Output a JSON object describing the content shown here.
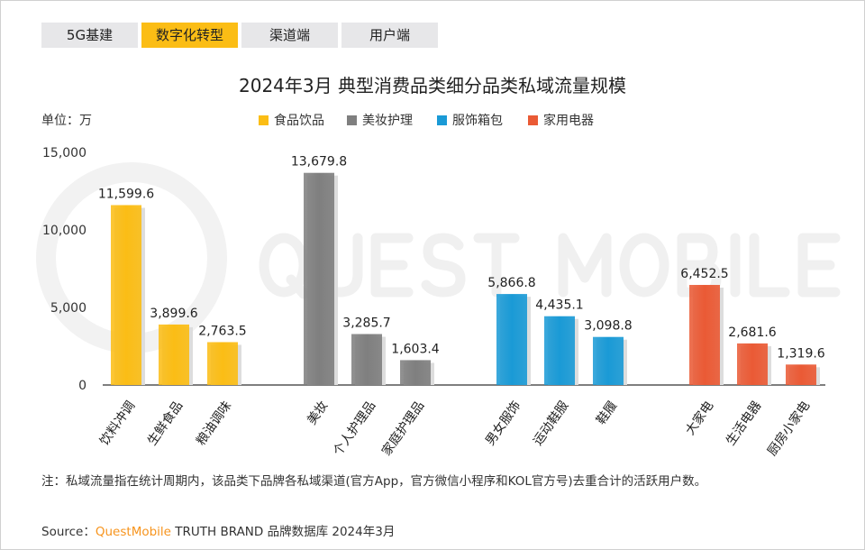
{
  "tabs": [
    {
      "label": "5G基建",
      "active": false
    },
    {
      "label": "数字化转型",
      "active": true
    },
    {
      "label": "渠道端",
      "active": false
    },
    {
      "label": "用户端",
      "active": false
    }
  ],
  "unit": "单位：万",
  "watermark": "QUEST MOBILE",
  "note": "注：私域流量指在统计周期内，该品类下品牌各私域渠道(官方App，官方微信小程序和KOL官方号)去重合计的活跃用户数。",
  "source": {
    "prefix": "Source：",
    "brand": "QuestMobile",
    "rest": " TRUTH BRAND 品牌数据库 2024年3月"
  },
  "chart_data": {
    "type": "bar",
    "title": "2024年3月 典型消费品类细分品类私域流量规模",
    "ylabel": "单位：万",
    "ylim": [
      0,
      15000
    ],
    "yticks": [
      "0",
      "5,000",
      "10,000",
      "15,000"
    ],
    "ytick_values": [
      0,
      5000,
      10000,
      15000
    ],
    "grid": false,
    "legend_position": "top",
    "series": [
      {
        "name": "食品饮品",
        "color": "#fbbd15",
        "categories": [
          "饮料冲调",
          "生鲜食品",
          "粮油调味"
        ],
        "values": [
          11599.6,
          3899.6,
          2763.5
        ],
        "labels": [
          "11,599.6",
          "3,899.6",
          "2,763.5"
        ]
      },
      {
        "name": "美妆护理",
        "color": "#7f7f7f",
        "categories": [
          "美妆",
          "个人护理品",
          "家庭护理品"
        ],
        "values": [
          13679.8,
          3285.7,
          1603.4
        ],
        "labels": [
          "13,679.8",
          "3,285.7",
          "1,603.4"
        ]
      },
      {
        "name": "服饰箱包",
        "color": "#1a9ad6",
        "categories": [
          "男女服饰",
          "运动鞋服",
          "鞋履"
        ],
        "values": [
          5866.8,
          4435.1,
          3098.8
        ],
        "labels": [
          "5,866.8",
          "4,435.1",
          "3,098.8"
        ]
      },
      {
        "name": "家用电器",
        "color": "#ea5a35",
        "categories": [
          "大家电",
          "生活电器",
          "厨房小家电"
        ],
        "values": [
          6452.5,
          2681.6,
          1319.6
        ],
        "labels": [
          "6,452.5",
          "2,681.6",
          "1,319.6"
        ]
      }
    ]
  }
}
